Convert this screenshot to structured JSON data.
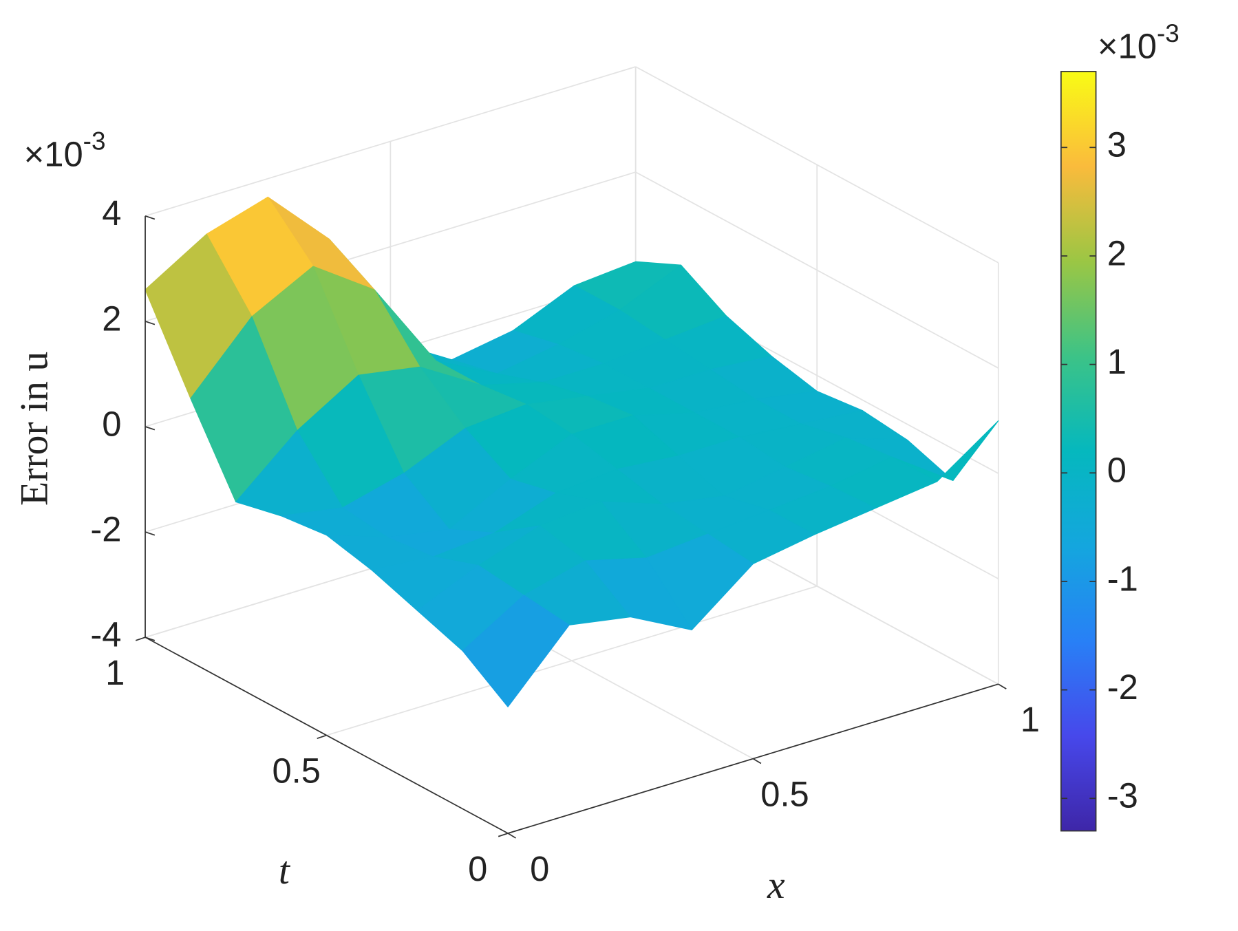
{
  "chart_data": {
    "type": "surface",
    "xlabel": "x",
    "tlabel": "t",
    "zlabel": "Error in u",
    "x": [
      0,
      0.125,
      0.25,
      0.375,
      0.5,
      0.625,
      0.75,
      0.875,
      1
    ],
    "t": [
      0,
      0.125,
      0.25,
      0.375,
      0.5,
      0.625,
      0.75,
      0.875,
      1
    ],
    "z": [
      [
        -1.6,
        -0.4,
        -0.6,
        -1.2,
        -0.3,
        -0.1,
        0.05,
        0.2,
        1.0
      ],
      [
        -1.0,
        -0.3,
        0.0,
        -0.3,
        -0.2,
        -0.1,
        0.0,
        0.2,
        -0.6
      ],
      [
        -0.7,
        -0.2,
        0.2,
        0.3,
        -0.1,
        -0.3,
        -0.1,
        0.1,
        -0.3
      ],
      [
        -0.4,
        -0.5,
        -0.4,
        0.0,
        0.1,
        0.0,
        0.0,
        -0.1,
        -0.2
      ],
      [
        -0.2,
        -0.6,
        -0.8,
        -0.2,
        0.3,
        0.3,
        0.0,
        -0.1,
        -0.3
      ],
      [
        -0.3,
        -0.5,
        -0.2,
        0.3,
        0.4,
        0.2,
        0.0,
        0.0,
        -0.1
      ],
      [
        -0.5,
        0.5,
        1.2,
        1.0,
        0.3,
        0.0,
        0.0,
        0.1,
        0.2
      ],
      [
        1.0,
        2.2,
        2.8,
        2.0,
        0.3,
        -0.3,
        -0.1,
        0.2,
        0.7
      ],
      [
        2.6,
        3.3,
        3.65,
        2.5,
        0.2,
        -0.5,
        -0.3,
        0.2,
        0.3
      ]
    ],
    "xlim": [
      0,
      1
    ],
    "xticks": [
      0,
      0.5,
      1
    ],
    "tlim": [
      0,
      1
    ],
    "tticks": [
      0,
      0.5,
      1
    ],
    "zlim": [
      -4,
      4
    ],
    "zticks": [
      -4,
      -2,
      0,
      2,
      4
    ],
    "z_multiplier": {
      "base": "×10",
      "exponent": "-3"
    },
    "clim": [
      -3.3,
      3.7
    ],
    "cticks": [
      -3,
      -2,
      -1,
      0,
      1,
      2,
      3
    ],
    "c_multiplier": {
      "base": "×10",
      "exponent": "-3"
    },
    "colormap": "parula",
    "grid": true
  }
}
